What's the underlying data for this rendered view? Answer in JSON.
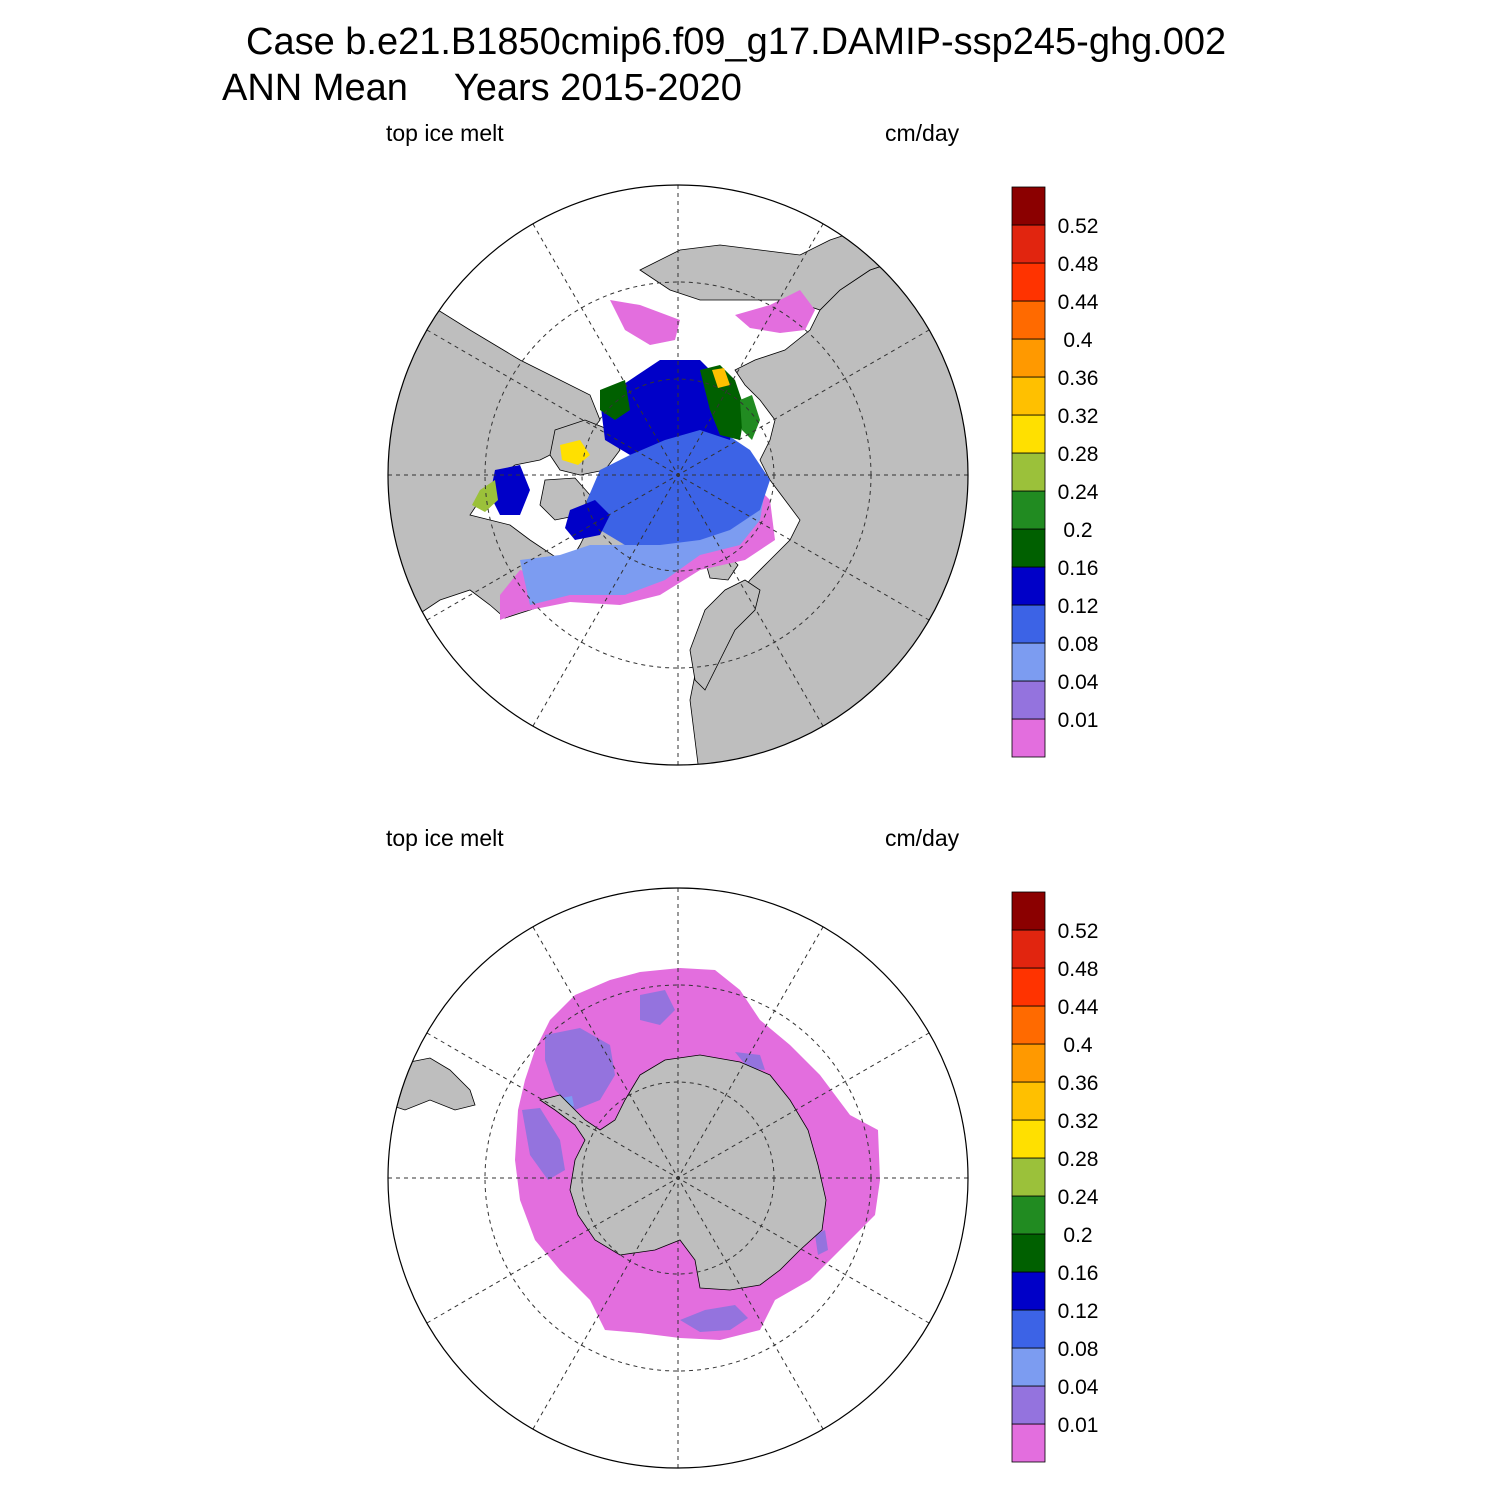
{
  "title": {
    "case": "Case b.e21.B1850cmip6.f09_g17.DAMIP-ssp245-ghg.002",
    "season": "ANN Mean",
    "years": "Years 2015-2020"
  },
  "colors": {
    "land": "#bebebe",
    "ocean": "#ffffff",
    "levels": [
      "#e36ede",
      "#9473de",
      "#7c9cf1",
      "#3c63e6",
      "#0000c8",
      "#006000",
      "#218b21",
      "#9bc13a",
      "#ffe000",
      "#ffc000",
      "#ff9900",
      "#ff6a00",
      "#ff3300",
      "#e1250f",
      "#8b0000"
    ]
  },
  "colorbar": {
    "labels": [
      "0.01",
      "0.04",
      "0.08",
      "0.12",
      "0.16",
      "0.2",
      "0.24",
      "0.28",
      "0.32",
      "0.36",
      "0.4",
      "0.44",
      "0.48",
      "0.52"
    ]
  },
  "panels": [
    {
      "name": "arctic",
      "variable": "top ice melt",
      "units": "cm/day"
    },
    {
      "name": "antarctic",
      "variable": "top ice melt",
      "units": "cm/day"
    }
  ]
}
